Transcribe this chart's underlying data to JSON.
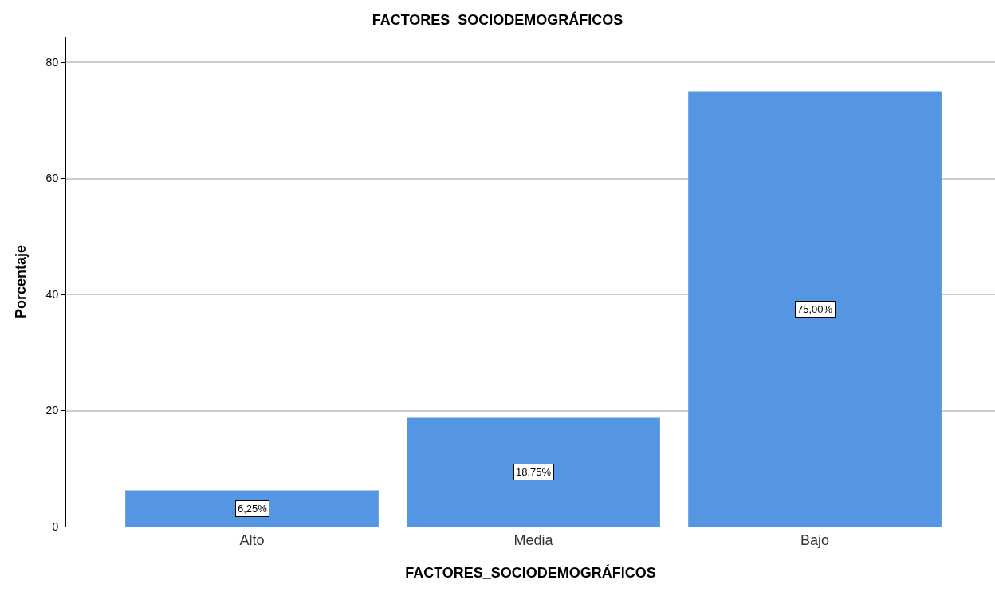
{
  "chart_data": {
    "type": "bar",
    "title": "FACTORES_SOCIODEMOGRÁFICOS",
    "xlabel": "FACTORES_SOCIODEMOGRÁFICOS",
    "ylabel": "Porcentaje",
    "categories": [
      "Alto",
      "Media",
      "Bajo"
    ],
    "values": [
      6.25,
      18.75,
      75
    ],
    "value_labels": [
      "6,25%",
      "18,75%",
      "75,00%"
    ],
    "color": "#5596e3",
    "ylim": [
      0,
      84.4
    ],
    "yticks": [
      0,
      20,
      40,
      60,
      80
    ],
    "grid": "y"
  }
}
